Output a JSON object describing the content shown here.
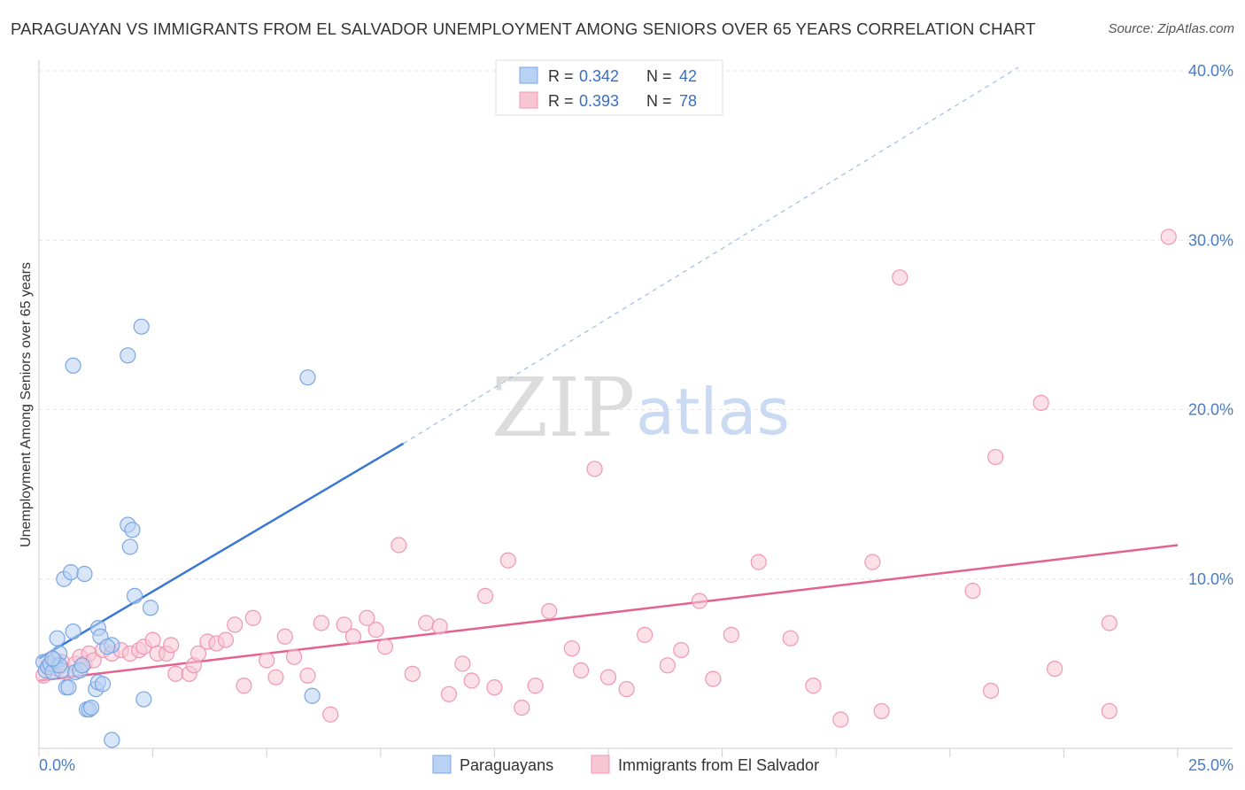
{
  "title": "PARAGUAYAN VS IMMIGRANTS FROM EL SALVADOR UNEMPLOYMENT AMONG SENIORS OVER 65 YEARS CORRELATION CHART",
  "source": "Source: ZipAtlas.com",
  "watermark": {
    "zip": "ZIP",
    "atlas": "atlas"
  },
  "colors": {
    "blue": "#3a78d4",
    "blue_fill": "#b9d2f3",
    "blue_stroke": "#7aa6e4",
    "pink": "#e3638e",
    "pink_fill": "#f7c6d5",
    "pink_stroke": "#ef97b4",
    "grid": "#e4e4e4",
    "tick_text": "#4a7cc4"
  },
  "chart_data": {
    "type": "scatter",
    "xlabel": "",
    "ylabel": "Unemployment Among Seniors over 65 years",
    "xlim": [
      0,
      25
    ],
    "ylim": [
      0,
      40
    ],
    "x_tick_labels": [
      "0.0%",
      "25.0%"
    ],
    "y_ticks": [
      10,
      20,
      30,
      40
    ],
    "y_tick_labels": [
      "10.0%",
      "20.0%",
      "30.0%",
      "40.0%"
    ],
    "legend_position": "top-center",
    "legend": [
      {
        "r_label": "R =",
        "r_value": "0.342",
        "n_label": "N =",
        "n_value": "42"
      },
      {
        "r_label": "R =",
        "r_value": "0.393",
        "n_label": "N =",
        "n_value": "78"
      }
    ],
    "series": [
      {
        "name": "Paraguayans",
        "color": "blue",
        "trend": {
          "x0": 0,
          "y0": 5.3,
          "x1": 8.0,
          "y1": 18.0,
          "dash_to_x": 21.5,
          "dash_to_y": 40.2
        },
        "points": [
          [
            0.1,
            5.1
          ],
          [
            0.15,
            4.6
          ],
          [
            0.2,
            4.8
          ],
          [
            0.25,
            5.0
          ],
          [
            0.3,
            4.5
          ],
          [
            0.35,
            5.2
          ],
          [
            0.4,
            6.5
          ],
          [
            0.45,
            5.6
          ],
          [
            0.5,
            4.6
          ],
          [
            0.55,
            10.0
          ],
          [
            0.6,
            3.6
          ],
          [
            0.65,
            3.6
          ],
          [
            0.7,
            10.4
          ],
          [
            0.75,
            6.9
          ],
          [
            0.8,
            4.5
          ],
          [
            0.9,
            4.6
          ],
          [
            0.95,
            4.9
          ],
          [
            0.75,
            22.6
          ],
          [
            1.0,
            10.3
          ],
          [
            1.05,
            2.3
          ],
          [
            1.1,
            2.3
          ],
          [
            1.15,
            2.4
          ],
          [
            1.25,
            3.5
          ],
          [
            1.3,
            3.9
          ],
          [
            1.3,
            7.1
          ],
          [
            1.35,
            6.6
          ],
          [
            1.4,
            3.8
          ],
          [
            1.6,
            6.1
          ],
          [
            1.6,
            0.5
          ],
          [
            1.95,
            23.2
          ],
          [
            1.95,
            13.2
          ],
          [
            2.05,
            12.9
          ],
          [
            2.0,
            11.9
          ],
          [
            2.1,
            9.0
          ],
          [
            2.3,
            2.9
          ],
          [
            2.25,
            24.9
          ],
          [
            2.45,
            8.3
          ],
          [
            5.9,
            21.9
          ],
          [
            6.0,
            3.1
          ],
          [
            0.45,
            4.9
          ],
          [
            0.3,
            5.3
          ],
          [
            1.5,
            6.0
          ]
        ]
      },
      {
        "name": "Immigrants from El Salvador",
        "color": "pink",
        "trend": {
          "x0": 0,
          "y0": 4.0,
          "x1": 25.0,
          "y1": 12.0
        },
        "points": [
          [
            0.1,
            4.3
          ],
          [
            0.2,
            4.9
          ],
          [
            0.3,
            5.3
          ],
          [
            0.4,
            4.7
          ],
          [
            0.5,
            5.1
          ],
          [
            0.6,
            4.5
          ],
          [
            0.8,
            5.0
          ],
          [
            0.9,
            5.4
          ],
          [
            1.0,
            5.0
          ],
          [
            1.1,
            5.6
          ],
          [
            1.2,
            5.2
          ],
          [
            1.4,
            5.8
          ],
          [
            1.6,
            5.6
          ],
          [
            1.8,
            5.8
          ],
          [
            2.0,
            5.6
          ],
          [
            2.2,
            5.8
          ],
          [
            2.3,
            6.0
          ],
          [
            2.5,
            6.4
          ],
          [
            2.6,
            5.6
          ],
          [
            2.8,
            5.6
          ],
          [
            2.9,
            6.1
          ],
          [
            3.0,
            4.4
          ],
          [
            3.3,
            4.4
          ],
          [
            3.4,
            4.9
          ],
          [
            3.5,
            5.6
          ],
          [
            3.7,
            6.3
          ],
          [
            3.9,
            6.2
          ],
          [
            4.1,
            6.4
          ],
          [
            4.3,
            7.3
          ],
          [
            4.5,
            3.7
          ],
          [
            4.7,
            7.7
          ],
          [
            5.0,
            5.2
          ],
          [
            5.2,
            4.2
          ],
          [
            5.4,
            6.6
          ],
          [
            5.6,
            5.4
          ],
          [
            5.9,
            4.3
          ],
          [
            6.2,
            7.4
          ],
          [
            6.4,
            2.0
          ],
          [
            6.7,
            7.3
          ],
          [
            6.9,
            6.6
          ],
          [
            7.2,
            7.7
          ],
          [
            7.4,
            7.0
          ],
          [
            7.6,
            6.0
          ],
          [
            7.9,
            12.0
          ],
          [
            8.2,
            4.4
          ],
          [
            8.5,
            7.4
          ],
          [
            8.8,
            7.2
          ],
          [
            9.0,
            3.2
          ],
          [
            9.3,
            5.0
          ],
          [
            9.5,
            4.0
          ],
          [
            9.8,
            9.0
          ],
          [
            10.0,
            3.6
          ],
          [
            10.3,
            11.1
          ],
          [
            10.6,
            2.4
          ],
          [
            10.9,
            3.7
          ],
          [
            11.2,
            8.1
          ],
          [
            11.7,
            5.9
          ],
          [
            11.9,
            4.6
          ],
          [
            12.2,
            16.5
          ],
          [
            12.5,
            4.2
          ],
          [
            12.9,
            3.5
          ],
          [
            13.3,
            6.7
          ],
          [
            13.8,
            4.9
          ],
          [
            14.1,
            5.8
          ],
          [
            14.5,
            8.7
          ],
          [
            14.8,
            4.1
          ],
          [
            15.2,
            6.7
          ],
          [
            15.8,
            11.0
          ],
          [
            16.5,
            6.5
          ],
          [
            17.0,
            3.7
          ],
          [
            17.6,
            1.7
          ],
          [
            18.3,
            11.0
          ],
          [
            18.5,
            2.2
          ],
          [
            20.5,
            9.3
          ],
          [
            21.0,
            17.2
          ],
          [
            22.0,
            20.4
          ],
          [
            22.3,
            4.7
          ],
          [
            23.5,
            7.4
          ]
        ]
      }
    ],
    "extra_points": [
      {
        "series": "pink",
        "x": 18.9,
        "y": 27.8
      },
      {
        "series": "pink",
        "x": 24.8,
        "y": 30.2
      },
      {
        "series": "pink",
        "x": 20.9,
        "y": 3.4
      },
      {
        "series": "pink",
        "x": 23.5,
        "y": 2.2
      }
    ]
  }
}
